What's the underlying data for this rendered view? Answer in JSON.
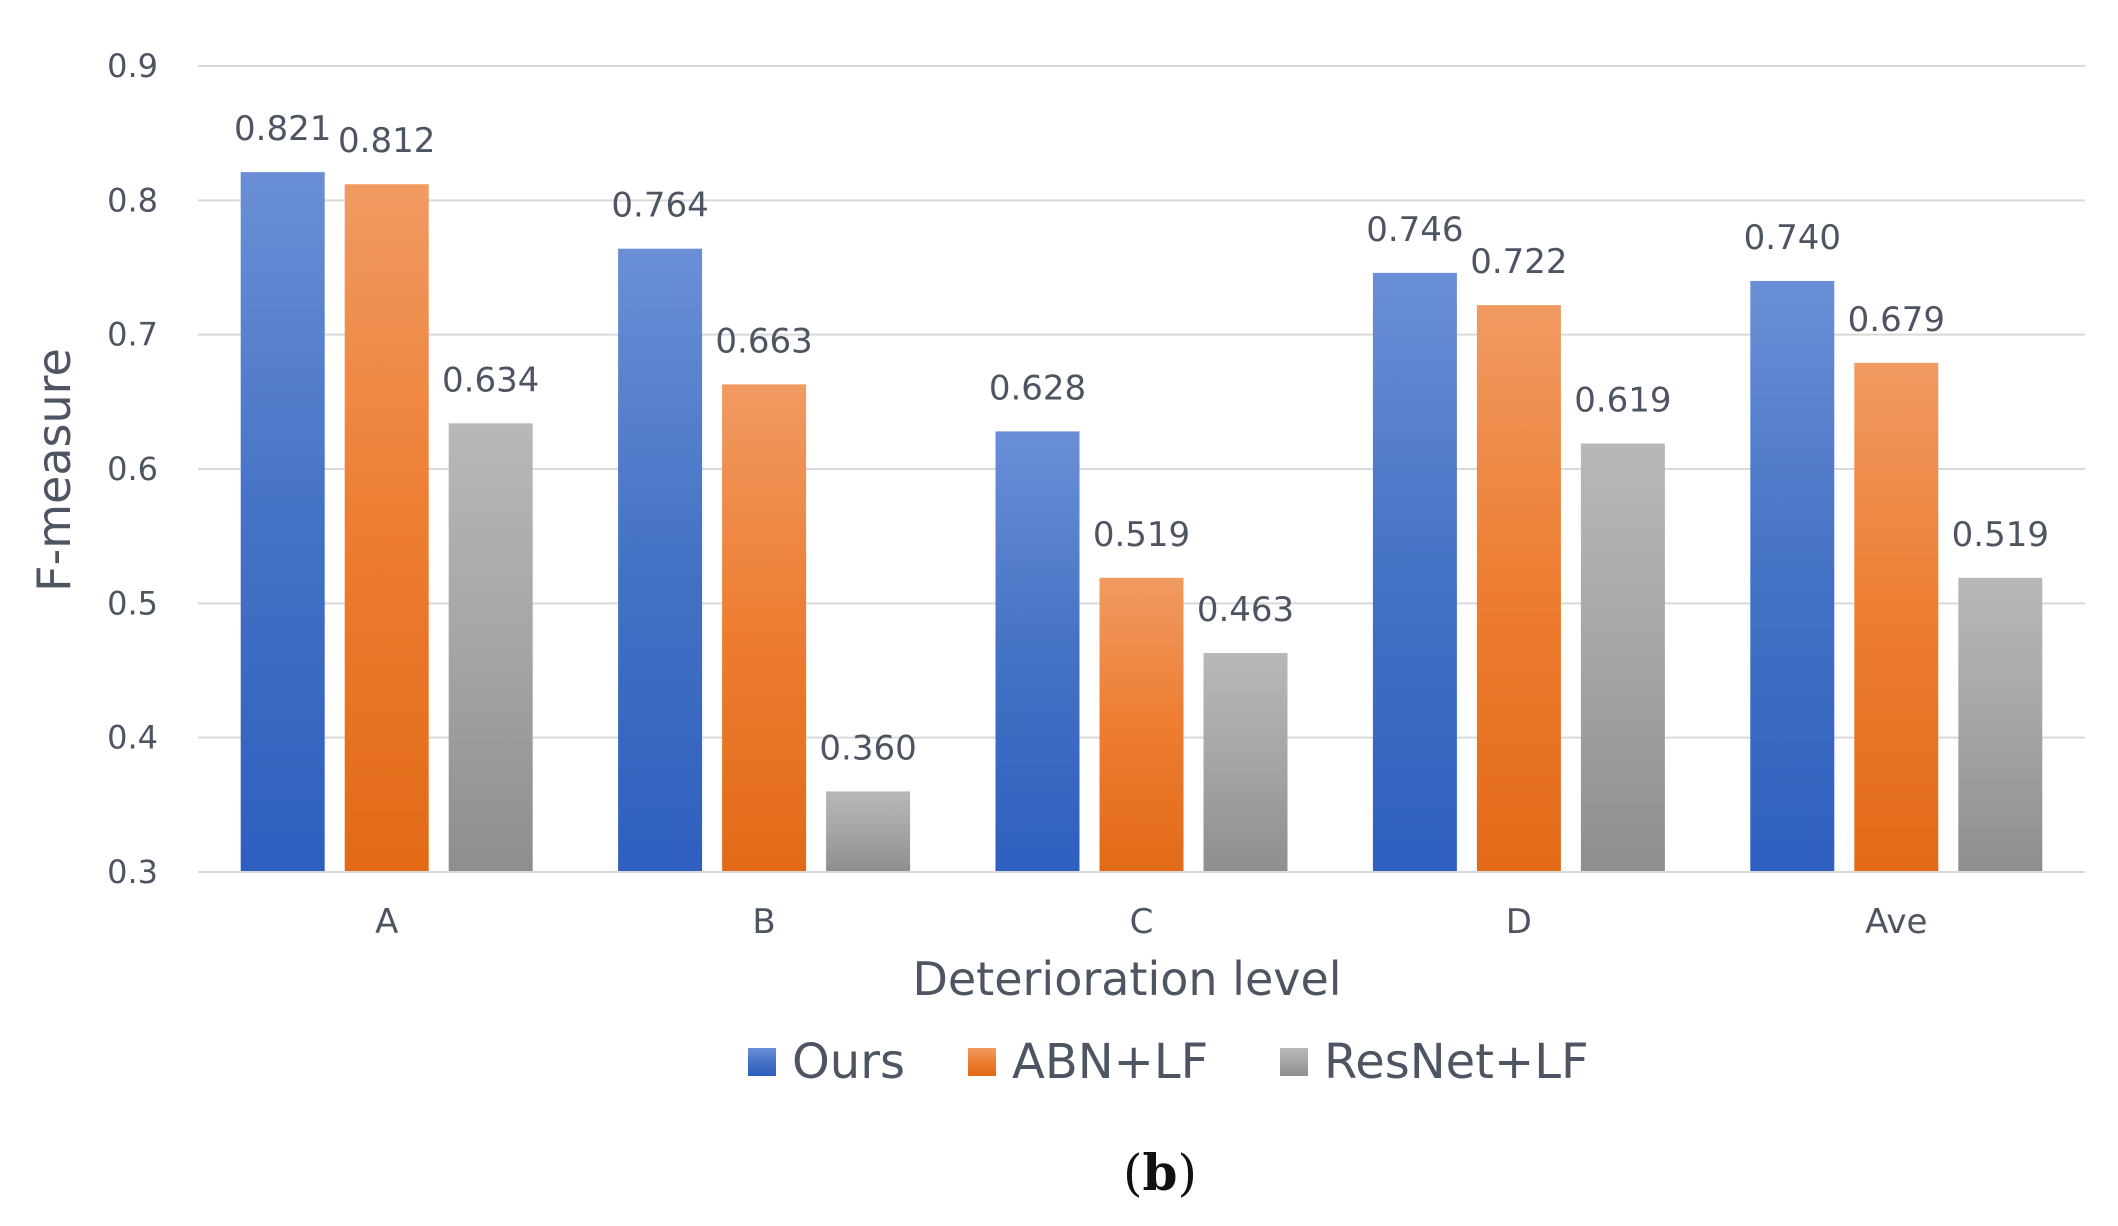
{
  "chart_data": {
    "type": "bar",
    "title": "",
    "xlabel": "Deterioration level",
    "ylabel": "F-measure",
    "ylim": [
      0.3,
      0.9
    ],
    "yticks": [
      "0.3",
      "0.4",
      "0.5",
      "0.6",
      "0.7",
      "0.8",
      "0.9"
    ],
    "grid": true,
    "legend_position": "bottom",
    "categories": [
      "A",
      "B",
      "C",
      "D",
      "Ave"
    ],
    "series": [
      {
        "name": "Ours",
        "values": [
          0.821,
          0.764,
          0.628,
          0.746,
          0.74
        ],
        "labels": [
          "0.821",
          "0.764",
          "0.628",
          "0.746",
          "0.740"
        ],
        "color": "#4472c4",
        "color_top": "#6a8fd6",
        "color_bottom": "#2f5fbf"
      },
      {
        "name": "ABN+LF",
        "values": [
          0.812,
          0.663,
          0.519,
          0.722,
          0.679
        ],
        "labels": [
          "0.812",
          "0.663",
          "0.519",
          "0.722",
          "0.679"
        ],
        "color": "#ed7d31",
        "color_top": "#f09a62",
        "color_bottom": "#e26a17"
      },
      {
        "name": "ResNet+LF",
        "values": [
          0.634,
          0.36,
          0.463,
          0.619,
          0.519
        ],
        "labels": [
          "0.634",
          "0.360",
          "0.463",
          "0.619",
          "0.519"
        ],
        "color": "#a5a5a5",
        "color_top": "#b8b8b8",
        "color_bottom": "#8e8e8e"
      }
    ]
  },
  "caption": {
    "open": "(",
    "letter": "b",
    "close": ")"
  }
}
